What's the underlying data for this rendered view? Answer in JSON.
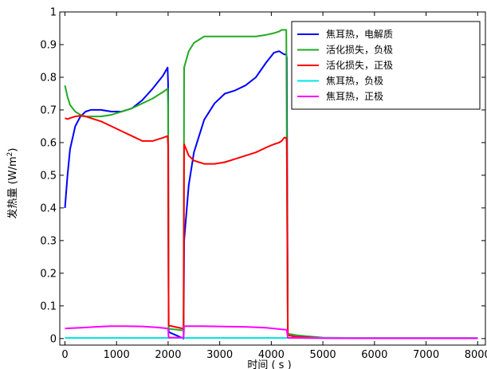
{
  "chart_data": {
    "type": "line",
    "xlabel": "时间 ( s )",
    "ylabel_main": "发热量 (W/m",
    "ylabel_sup": "2",
    "ylabel_close": ")",
    "xlim": [
      -100,
      8150
    ],
    "ylim": [
      -0.02,
      1.0
    ],
    "x_ticks": [
      0,
      1000,
      2000,
      3000,
      4000,
      5000,
      6000,
      7000,
      8000
    ],
    "x_tick_labels": [
      "0",
      "1000",
      "2000",
      "3000",
      "4000",
      "5000",
      "6000",
      "7000",
      "8000"
    ],
    "y_ticks": [
      0,
      0.1,
      0.2,
      0.3,
      0.4,
      0.5,
      0.6,
      0.7,
      0.8,
      0.9,
      1.0
    ],
    "y_tick_labels": [
      "0",
      "0.1",
      "0.2",
      "0.3",
      "0.4",
      "0.5",
      "0.6",
      "0.7",
      "0.8",
      "0.9",
      "1"
    ],
    "grid": false,
    "legend_position": "top-right",
    "series": [
      {
        "name": "焦耳热，电解质",
        "color": "#0000ff",
        "x": [
          0,
          50,
          100,
          200,
          300,
          400,
          500,
          700,
          900,
          1100,
          1300,
          1500,
          1700,
          1900,
          1990,
          2000,
          2010,
          2300,
          2310,
          2400,
          2500,
          2700,
          2900,
          3100,
          3300,
          3500,
          3700,
          3900,
          4050,
          4150,
          4200,
          4250,
          4290,
          4300,
          4320,
          4500,
          5000,
          6000,
          7000,
          8000
        ],
        "y": [
          0.4,
          0.5,
          0.58,
          0.65,
          0.68,
          0.695,
          0.7,
          0.7,
          0.695,
          0.695,
          0.705,
          0.73,
          0.765,
          0.805,
          0.83,
          0.78,
          0.02,
          0.0,
          0.3,
          0.47,
          0.57,
          0.67,
          0.72,
          0.75,
          0.76,
          0.775,
          0.8,
          0.845,
          0.875,
          0.88,
          0.875,
          0.87,
          0.87,
          0.86,
          0.01,
          0.005,
          0.002,
          0.001,
          0.001,
          0.001
        ]
      },
      {
        "name": "活化损失，负极",
        "color": "#22aa22",
        "x": [
          0,
          50,
          100,
          200,
          300,
          400,
          500,
          700,
          900,
          1100,
          1300,
          1500,
          1700,
          1900,
          1990,
          2000,
          2010,
          2300,
          2310,
          2400,
          2500,
          2700,
          2900,
          3100,
          3300,
          3500,
          3700,
          3900,
          4050,
          4150,
          4200,
          4250,
          4290,
          4300,
          4320,
          4500,
          5000,
          6000,
          7000,
          8000
        ],
        "y": [
          0.775,
          0.74,
          0.715,
          0.695,
          0.685,
          0.68,
          0.68,
          0.68,
          0.685,
          0.695,
          0.705,
          0.72,
          0.735,
          0.755,
          0.765,
          0.715,
          0.03,
          0.025,
          0.83,
          0.88,
          0.905,
          0.925,
          0.925,
          0.925,
          0.925,
          0.925,
          0.925,
          0.93,
          0.935,
          0.94,
          0.945,
          0.945,
          0.945,
          0.62,
          0.015,
          0.01,
          0.003,
          0.001,
          0.001,
          0.001
        ]
      },
      {
        "name": "活化损失，正极",
        "color": "#ff0000",
        "x": [
          0,
          50,
          100,
          200,
          300,
          400,
          500,
          700,
          900,
          1100,
          1300,
          1500,
          1700,
          1900,
          1990,
          2000,
          2010,
          2300,
          2310,
          2400,
          2500,
          2700,
          2900,
          3100,
          3300,
          3500,
          3700,
          3900,
          4050,
          4150,
          4200,
          4250,
          4290,
          4300,
          4320,
          4500,
          5000,
          6000,
          7000,
          8000
        ],
        "y": [
          0.675,
          0.672,
          0.675,
          0.68,
          0.682,
          0.68,
          0.675,
          0.665,
          0.65,
          0.635,
          0.62,
          0.605,
          0.605,
          0.615,
          0.62,
          0.59,
          0.04,
          0.03,
          0.595,
          0.56,
          0.545,
          0.535,
          0.535,
          0.54,
          0.55,
          0.56,
          0.57,
          0.585,
          0.595,
          0.6,
          0.605,
          0.615,
          0.615,
          0.6,
          0.01,
          0.005,
          0.002,
          0.001,
          0.001,
          0.001
        ]
      },
      {
        "name": "焦耳热，负极",
        "color": "#00e5e5",
        "x": [
          0,
          1000,
          2000,
          3000,
          4000,
          5000,
          6000,
          7000,
          8000
        ],
        "y": [
          0.002,
          0.002,
          0.002,
          0.002,
          0.002,
          0.002,
          0.002,
          0.002,
          0.002
        ]
      },
      {
        "name": "焦耳热，正极",
        "color": "#ff00ff",
        "x": [
          0,
          300,
          600,
          900,
          1200,
          1500,
          1800,
          1990,
          2000,
          2010,
          2300,
          2310,
          2600,
          3000,
          3500,
          3900,
          4200,
          4290,
          4300,
          4320,
          4500,
          5000,
          6000,
          7000,
          8000
        ],
        "y": [
          0.031,
          0.033,
          0.036,
          0.038,
          0.038,
          0.037,
          0.034,
          0.031,
          0.03,
          0.003,
          0.003,
          0.038,
          0.038,
          0.037,
          0.036,
          0.033,
          0.028,
          0.027,
          0.026,
          0.002,
          0.002,
          0.001,
          0.001,
          0.001,
          0.001
        ]
      }
    ]
  }
}
